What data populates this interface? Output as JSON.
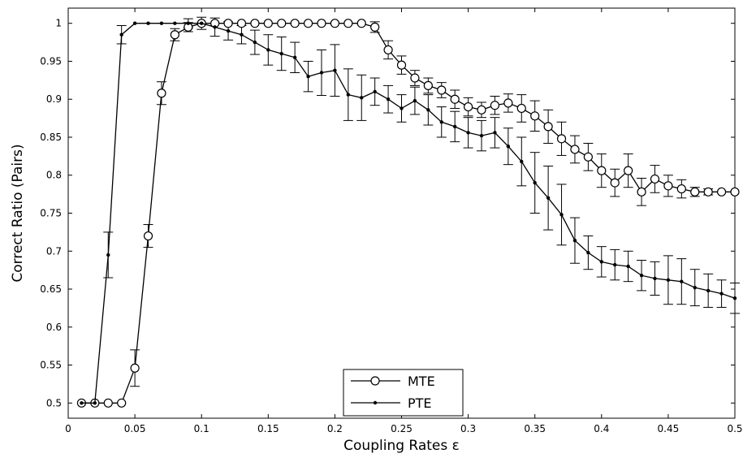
{
  "chart_data": {
    "type": "line",
    "xlabel": "Coupling Rates ε",
    "ylabel": "Correct Ratio (Pairs)",
    "xlim": [
      0,
      0.5
    ],
    "ylim": [
      0.48,
      1.02
    ],
    "xticks": [
      0,
      0.05,
      0.1,
      0.15,
      0.2,
      0.25,
      0.3,
      0.35,
      0.4,
      0.45,
      0.5
    ],
    "xtick_labels": [
      "0",
      "0.05",
      "0.1",
      "0.15",
      "0.2",
      "0.25",
      "0.3",
      "0.35",
      "0.4",
      "0.45",
      "0.5"
    ],
    "yticks": [
      0.5,
      0.55,
      0.6,
      0.65,
      0.7,
      0.75,
      0.8,
      0.85,
      0.9,
      0.95,
      1
    ],
    "ytick_labels": [
      "0.5",
      "0.55",
      "0.6",
      "0.65",
      "0.7",
      "0.75",
      "0.8",
      "0.85",
      "0.9",
      "0.95",
      "1"
    ],
    "grid": false,
    "legend_position": "bottom-center",
    "x": [
      0.01,
      0.02,
      0.03,
      0.04,
      0.05,
      0.06,
      0.07,
      0.08,
      0.09,
      0.1,
      0.11,
      0.12,
      0.13,
      0.14,
      0.15,
      0.16,
      0.17,
      0.18,
      0.19,
      0.2,
      0.21,
      0.22,
      0.23,
      0.24,
      0.25,
      0.26,
      0.27,
      0.28,
      0.29,
      0.3,
      0.31,
      0.32,
      0.33,
      0.34,
      0.35,
      0.36,
      0.37,
      0.38,
      0.39,
      0.4,
      0.41,
      0.42,
      0.43,
      0.44,
      0.45,
      0.46,
      0.47,
      0.48,
      0.49,
      0.5
    ],
    "series": [
      {
        "name": "MTE",
        "marker": "circle",
        "values": [
          0.5,
          0.5,
          0.5,
          0.5,
          0.546,
          0.72,
          0.908,
          0.985,
          0.995,
          1,
          1,
          1,
          1,
          1,
          1,
          1,
          1,
          1,
          1,
          1,
          1,
          1,
          0.995,
          0.965,
          0.945,
          0.928,
          0.918,
          0.912,
          0.9,
          0.89,
          0.886,
          0.892,
          0.895,
          0.888,
          0.878,
          0.864,
          0.848,
          0.834,
          0.824,
          0.806,
          0.79,
          0.806,
          0.778,
          0.795,
          0.786,
          0.782,
          0.778,
          0.778,
          0.778,
          0.778
        ],
        "errors": [
          0,
          0,
          0,
          0,
          0.024,
          0.015,
          0.015,
          0.008,
          0.006,
          0.003,
          0.003,
          0.002,
          0,
          0,
          0,
          0,
          0,
          0,
          0,
          0,
          0,
          0,
          0.007,
          0.012,
          0.012,
          0.01,
          0.01,
          0.01,
          0.012,
          0.012,
          0.01,
          0.012,
          0.012,
          0.018,
          0.02,
          0.022,
          0.022,
          0.018,
          0.018,
          0.022,
          0.018,
          0.022,
          0.018,
          0.018,
          0.014,
          0.012,
          0.006,
          0.004,
          0.002,
          0
        ]
      },
      {
        "name": "PTE",
        "marker": "dot",
        "values": [
          0.5,
          0.5,
          0.695,
          0.985,
          1,
          1,
          1,
          1,
          1,
          1,
          0.995,
          0.99,
          0.985,
          0.975,
          0.965,
          0.96,
          0.955,
          0.93,
          0.935,
          0.938,
          0.906,
          0.902,
          0.91,
          0.9,
          0.888,
          0.898,
          0.886,
          0.87,
          0.864,
          0.856,
          0.852,
          0.856,
          0.838,
          0.818,
          0.79,
          0.77,
          0.748,
          0.714,
          0.698,
          0.686,
          0.682,
          0.68,
          0.668,
          0.664,
          0.662,
          0.66,
          0.652,
          0.648,
          0.644,
          0.638
        ],
        "errors": [
          0,
          0.002,
          0.03,
          0.012,
          0,
          0,
          0,
          0,
          0.006,
          0.008,
          0.012,
          0.012,
          0.012,
          0.016,
          0.02,
          0.022,
          0.02,
          0.02,
          0.03,
          0.034,
          0.034,
          0.03,
          0.018,
          0.018,
          0.018,
          0.018,
          0.02,
          0.02,
          0.02,
          0.02,
          0.02,
          0.02,
          0.024,
          0.032,
          0.04,
          0.042,
          0.04,
          0.03,
          0.022,
          0.02,
          0.02,
          0.02,
          0.02,
          0.022,
          0.032,
          0.03,
          0.024,
          0.022,
          0.018,
          0.02
        ]
      }
    ]
  }
}
